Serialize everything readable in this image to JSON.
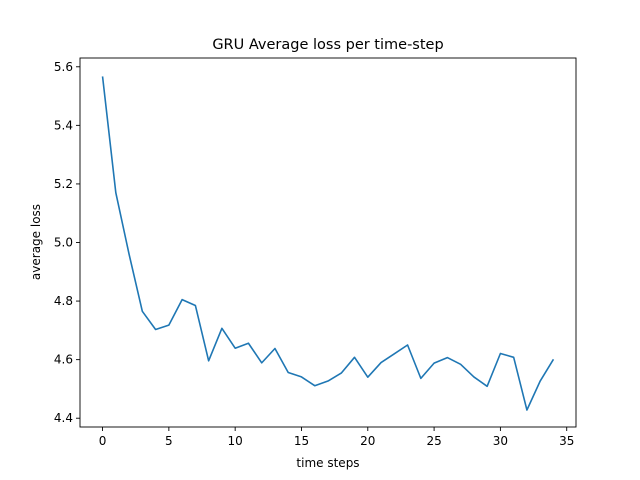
{
  "chart_data": {
    "type": "line",
    "title": "GRU Average loss per time-step",
    "xlabel": "time steps",
    "ylabel": "average loss",
    "xlim": [
      -1.7,
      35.7
    ],
    "ylim": [
      4.37,
      5.63
    ],
    "xticks": [
      0,
      5,
      10,
      15,
      20,
      25,
      30,
      35
    ],
    "yticks": [
      4.4,
      4.6,
      4.8,
      5.0,
      5.2,
      5.4,
      5.6
    ],
    "ytick_labels": [
      "4.4",
      "4.6",
      "4.8",
      "5.0",
      "5.2",
      "5.4",
      "5.6"
    ],
    "grid": false,
    "line_color": "#1f77b4",
    "series": [
      {
        "x": [
          0,
          1,
          2,
          3,
          4,
          5,
          6,
          7,
          8,
          9,
          10,
          11,
          12,
          13,
          14,
          15,
          16,
          17,
          18,
          19,
          20,
          21,
          22,
          23,
          24,
          25,
          26,
          27,
          28,
          29,
          30,
          31,
          32,
          33,
          34
        ],
        "values": [
          5.567,
          5.17,
          4.96,
          4.765,
          4.703,
          4.718,
          4.805,
          4.785,
          4.596,
          4.707,
          4.639,
          4.656,
          4.589,
          4.638,
          4.556,
          4.541,
          4.511,
          4.527,
          4.554,
          4.608,
          4.54,
          4.59,
          4.62,
          4.65,
          4.536,
          4.588,
          4.607,
          4.584,
          4.541,
          4.509,
          4.621,
          4.608,
          4.428,
          4.527,
          4.601
        ]
      }
    ]
  }
}
